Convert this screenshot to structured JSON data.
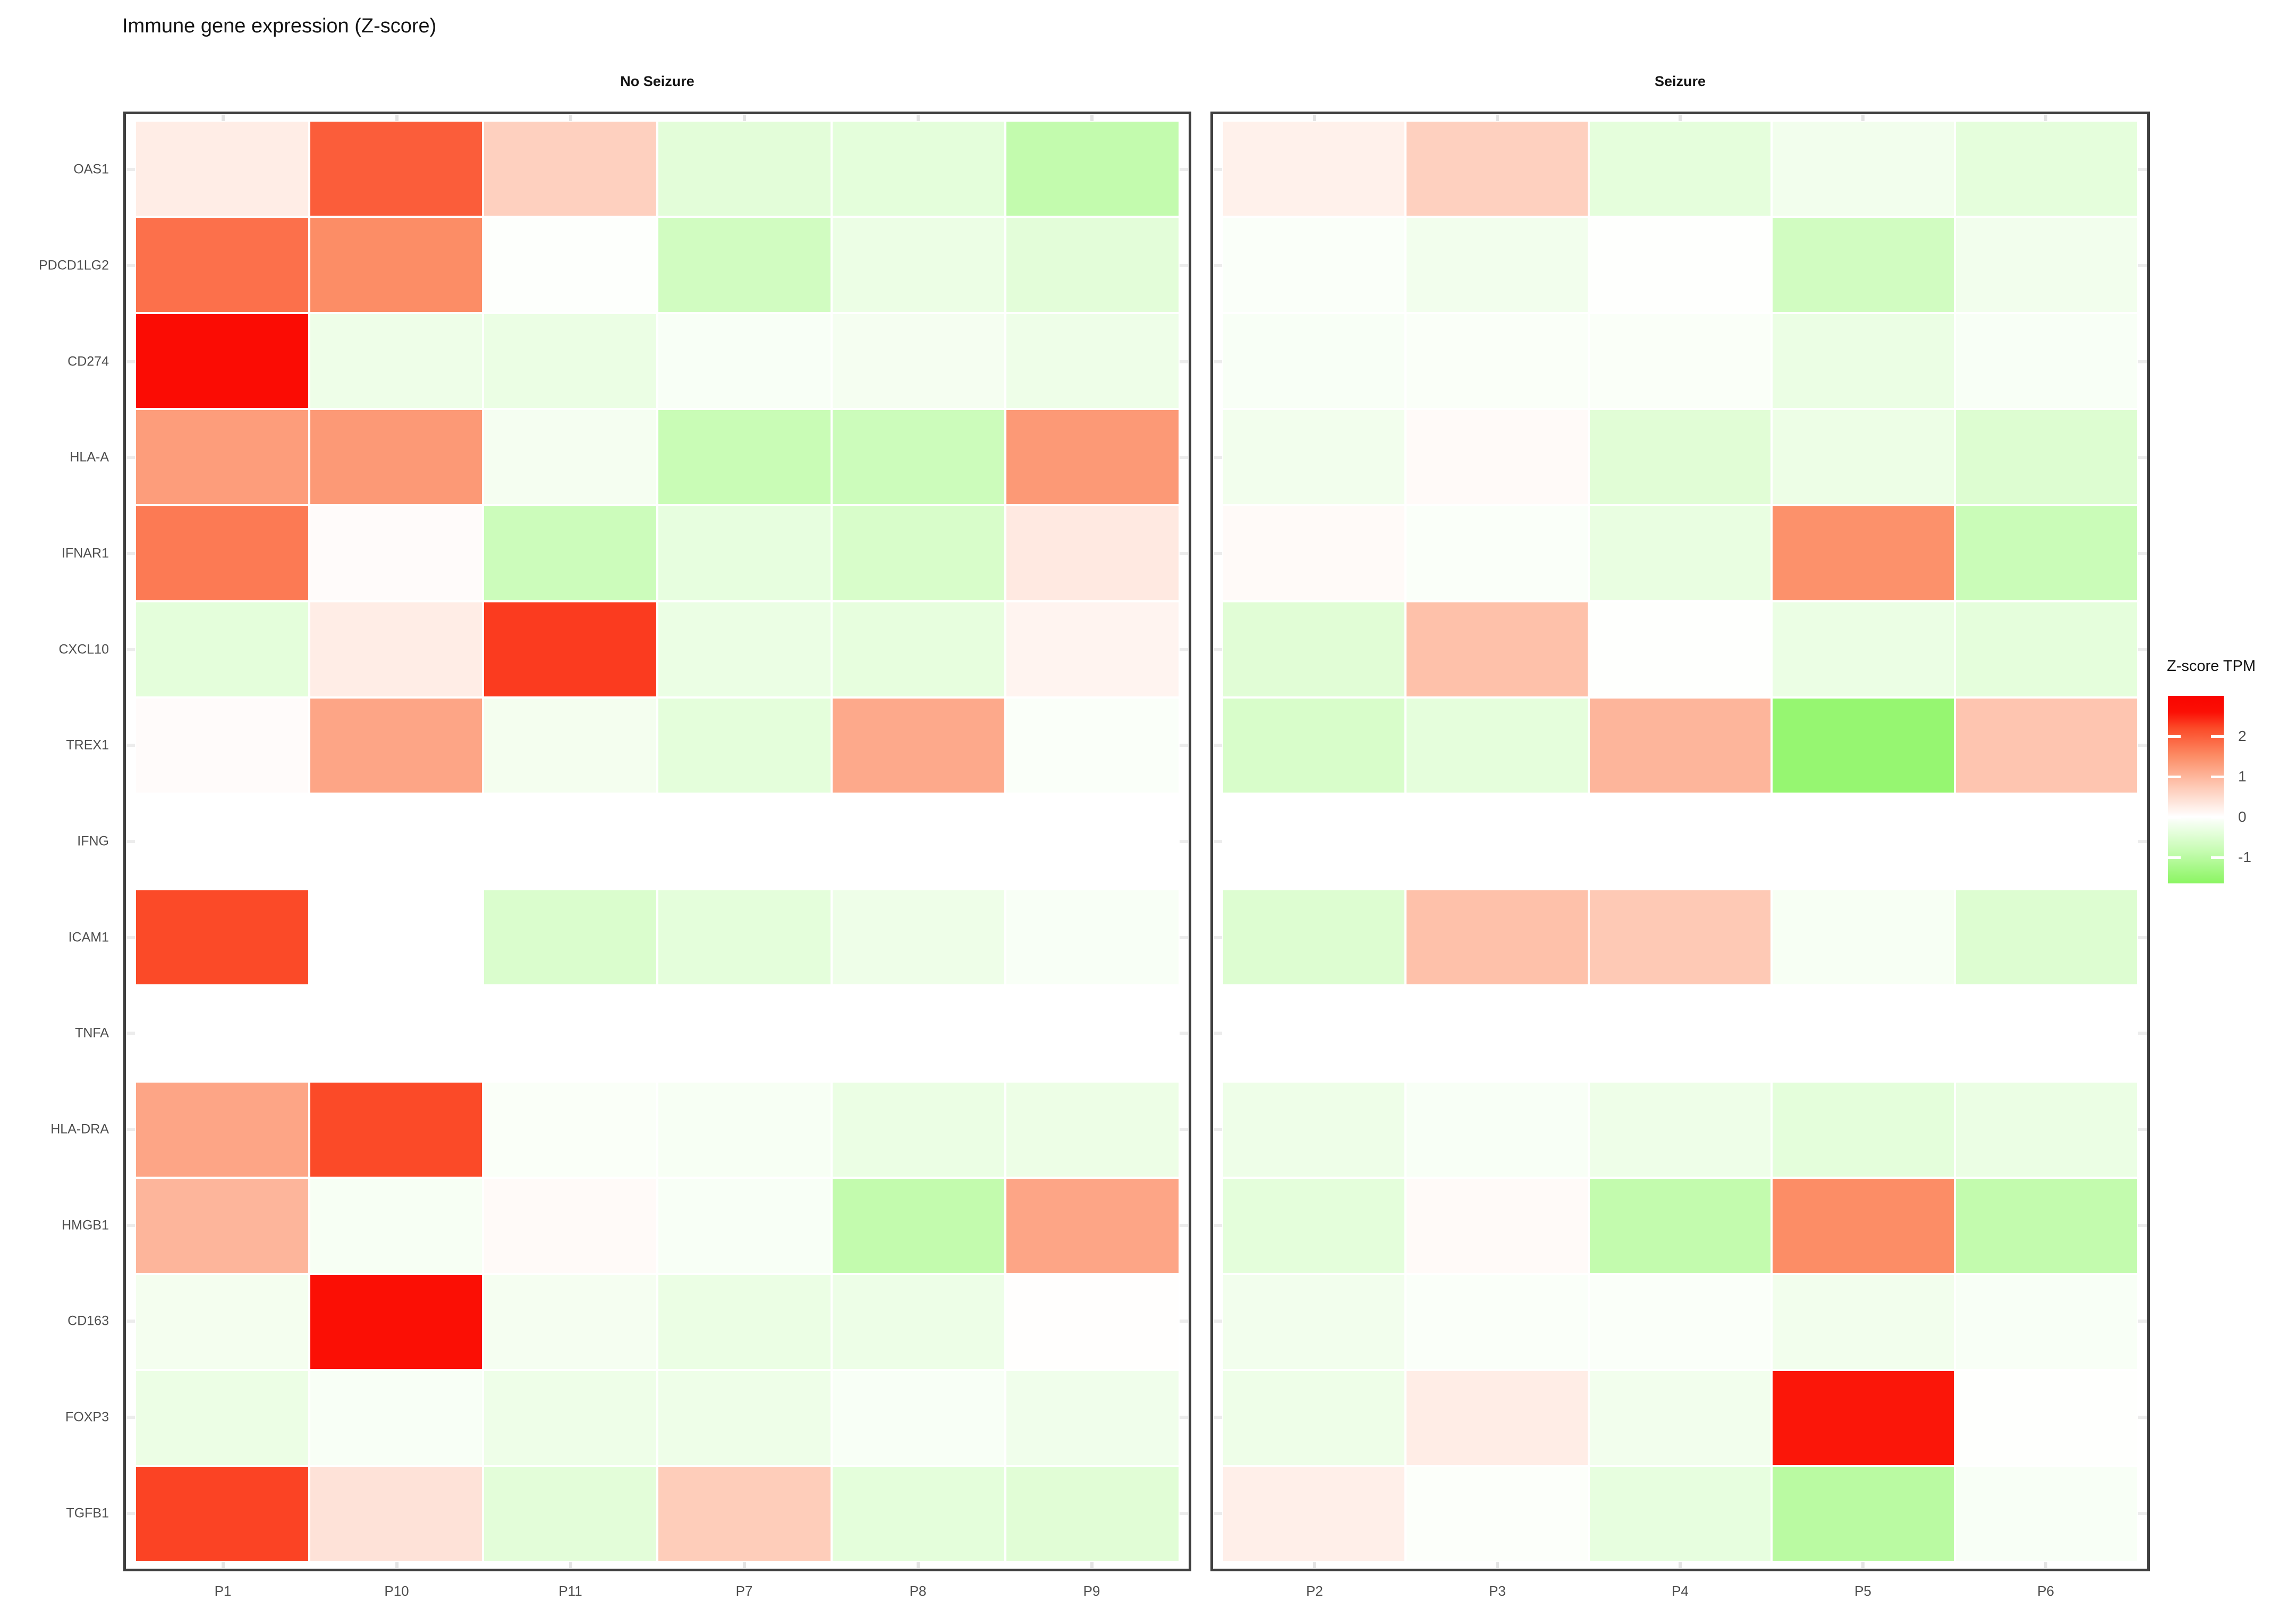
{
  "title": "Immune gene expression (Z-score)",
  "legend": {
    "title": "Z-score TPM",
    "ticks": [
      2,
      1,
      0,
      -1
    ]
  },
  "chart_data": {
    "type": "heatmap",
    "title": "Immune gene expression (Z-score)",
    "ylabel": "",
    "xlabel": "",
    "genes": [
      "OAS1",
      "PDCD1LG2",
      "CD274",
      "HLA-A",
      "IFNAR1",
      "CXCL10",
      "TREX1",
      "IFNG",
      "ICAM1",
      "TNFA",
      "HLA-DRA",
      "HMGB1",
      "CD163",
      "FOXP3",
      "TGFB1"
    ],
    "facets": [
      {
        "label": "No Seizure",
        "columns": [
          "P1",
          "P10",
          "P11",
          "P7",
          "P8",
          "P9"
        ],
        "values": [
          [
            0.25,
            2.0,
            0.65,
            -0.42,
            -0.4,
            -0.88
          ],
          [
            1.8,
            1.5,
            -0.03,
            -0.68,
            -0.28,
            -0.42
          ],
          [
            2.7,
            -0.25,
            -0.3,
            -0.1,
            -0.15,
            -0.25
          ],
          [
            1.3,
            1.35,
            -0.15,
            -0.8,
            -0.75,
            1.35
          ],
          [
            1.7,
            0.05,
            -0.75,
            -0.35,
            -0.58,
            0.3
          ],
          [
            -0.4,
            0.25,
            2.3,
            -0.3,
            -0.36,
            0.15
          ],
          [
            0.05,
            1.2,
            -0.17,
            -0.4,
            1.15,
            -0.07
          ],
          [
            null,
            null,
            null,
            null,
            null,
            null
          ],
          [
            2.2,
            0.0,
            -0.55,
            -0.4,
            -0.25,
            -0.1
          ],
          [
            null,
            null,
            null,
            null,
            null,
            null
          ],
          [
            1.2,
            2.2,
            -0.08,
            -0.12,
            -0.3,
            -0.27
          ],
          [
            1.0,
            -0.12,
            0.07,
            -0.1,
            -0.88,
            1.2
          ],
          [
            -0.17,
            2.6,
            -0.15,
            -0.3,
            -0.26,
            0.02
          ],
          [
            -0.28,
            -0.1,
            -0.25,
            -0.25,
            -0.1,
            -0.22
          ],
          [
            2.25,
            0.4,
            -0.42,
            0.7,
            -0.4,
            -0.45
          ]
        ]
      },
      {
        "label": "Seizure",
        "columns": [
          "P2",
          "P3",
          "P4",
          "P5",
          "P6"
        ],
        "values": [
          [
            0.2,
            0.65,
            -0.38,
            -0.2,
            -0.38
          ],
          [
            -0.07,
            -0.2,
            -0.02,
            -0.68,
            -0.2
          ],
          [
            -0.1,
            -0.08,
            -0.08,
            -0.3,
            -0.1
          ],
          [
            -0.2,
            0.07,
            -0.45,
            -0.27,
            -0.5
          ],
          [
            0.07,
            -0.07,
            -0.33,
            1.45,
            -0.78
          ],
          [
            -0.45,
            0.85,
            -0.02,
            -0.3,
            -0.38
          ],
          [
            -0.58,
            -0.38,
            1.0,
            -1.5,
            0.8
          ],
          [
            null,
            null,
            null,
            null,
            null
          ],
          [
            -0.5,
            0.85,
            0.75,
            -0.12,
            -0.5
          ],
          [
            null,
            null,
            null,
            null,
            null
          ],
          [
            -0.25,
            -0.1,
            -0.25,
            -0.4,
            -0.3
          ],
          [
            -0.4,
            0.07,
            -0.88,
            1.5,
            -0.88
          ],
          [
            -0.2,
            -0.07,
            -0.07,
            -0.2,
            -0.1
          ],
          [
            -0.25,
            0.25,
            -0.2,
            2.55,
            -0.02
          ],
          [
            0.22,
            -0.05,
            -0.35,
            -1.0,
            -0.1
          ]
        ]
      }
    ],
    "colorscale": {
      "domain_top": 3.0,
      "domain_bottom": -1.65,
      "na_color": "#ffffff",
      "stops": [
        [
          3.0,
          "#fa0500"
        ],
        [
          2.6,
          "#fb0f05"
        ],
        [
          2.2,
          "#fb4a28"
        ],
        [
          1.5,
          "#fc8d66"
        ],
        [
          0.75,
          "#fec9b5"
        ],
        [
          0.0,
          "#ffffff"
        ],
        [
          -0.8,
          "#c9fcb6"
        ],
        [
          -1.65,
          "#8bf562"
        ]
      ]
    },
    "legend_title": "Z-score TPM",
    "legend_ticks": [
      2,
      1,
      0,
      -1
    ],
    "grid": false,
    "legend_position": "right"
  }
}
